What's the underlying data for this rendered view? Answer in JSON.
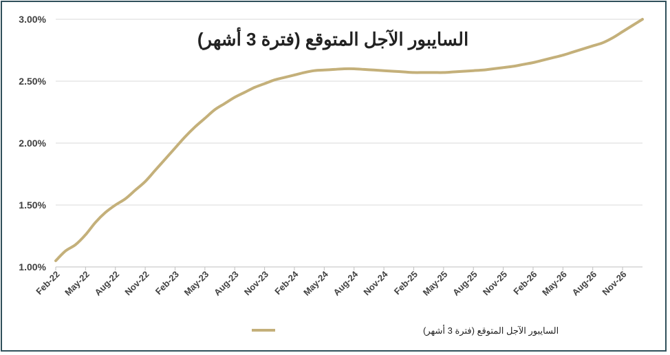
{
  "chart_data": {
    "type": "line",
    "title": "السايبور الآجل المتوقع (فترة 3 أشهر)",
    "xlabel": "",
    "ylabel": "",
    "ylim": [
      1.0,
      3.0
    ],
    "yticks": [
      "1.00%",
      "1.50%",
      "2.00%",
      "2.50%",
      "3.00%"
    ],
    "ytick_values": [
      1.0,
      1.5,
      2.0,
      2.5,
      3.0
    ],
    "xtick_labels": [
      "Feb-22",
      "May-22",
      "Aug-22",
      "Nov-22",
      "Feb-23",
      "May-23",
      "Aug-23",
      "Nov-23",
      "Feb-24",
      "May-24",
      "Aug-24",
      "Nov-24",
      "Feb-25",
      "May-25",
      "Aug-25",
      "Nov-25",
      "Feb-26",
      "May-26",
      "Aug-26",
      "Nov-26"
    ],
    "grid": true,
    "legend_position": "bottom",
    "series": [
      {
        "name": "السايبور الآجل المتوقع (فترة 3 أشهر)",
        "color": "#c4b07a",
        "x": [
          "Feb-22",
          "Mar-22",
          "Apr-22",
          "May-22",
          "Jun-22",
          "Jul-22",
          "Aug-22",
          "Sep-22",
          "Oct-22",
          "Nov-22",
          "Dec-22",
          "Jan-23",
          "Feb-23",
          "Mar-23",
          "Apr-23",
          "May-23",
          "Jun-23",
          "Jul-23",
          "Aug-23",
          "Sep-23",
          "Oct-23",
          "Nov-23",
          "Dec-23",
          "Jan-24",
          "Feb-24",
          "Mar-24",
          "Apr-24",
          "May-24",
          "Jun-24",
          "Jul-24",
          "Aug-24",
          "Sep-24",
          "Oct-24",
          "Nov-24",
          "Dec-24",
          "Jan-25",
          "Feb-25",
          "Mar-25",
          "Apr-25",
          "May-25",
          "Jun-25",
          "Jul-25",
          "Aug-25",
          "Sep-25",
          "Oct-25",
          "Nov-25",
          "Dec-25",
          "Jan-26",
          "Feb-26",
          "Mar-26",
          "Apr-26",
          "May-26",
          "Jun-26",
          "Jul-26",
          "Aug-26",
          "Sep-26",
          "Oct-26",
          "Nov-26",
          "Dec-26",
          "Jan-27"
        ],
        "values": [
          1.05,
          1.13,
          1.18,
          1.26,
          1.36,
          1.44,
          1.5,
          1.55,
          1.62,
          1.69,
          1.78,
          1.87,
          1.96,
          2.05,
          2.13,
          2.2,
          2.27,
          2.32,
          2.37,
          2.41,
          2.45,
          2.48,
          2.51,
          2.53,
          2.55,
          2.57,
          2.585,
          2.59,
          2.595,
          2.6,
          2.6,
          2.595,
          2.59,
          2.585,
          2.58,
          2.575,
          2.57,
          2.57,
          2.57,
          2.57,
          2.575,
          2.58,
          2.585,
          2.59,
          2.6,
          2.61,
          2.62,
          2.635,
          2.65,
          2.67,
          2.69,
          2.71,
          2.735,
          2.76,
          2.785,
          2.81,
          2.85,
          2.9,
          2.95,
          3.0
        ]
      }
    ]
  }
}
